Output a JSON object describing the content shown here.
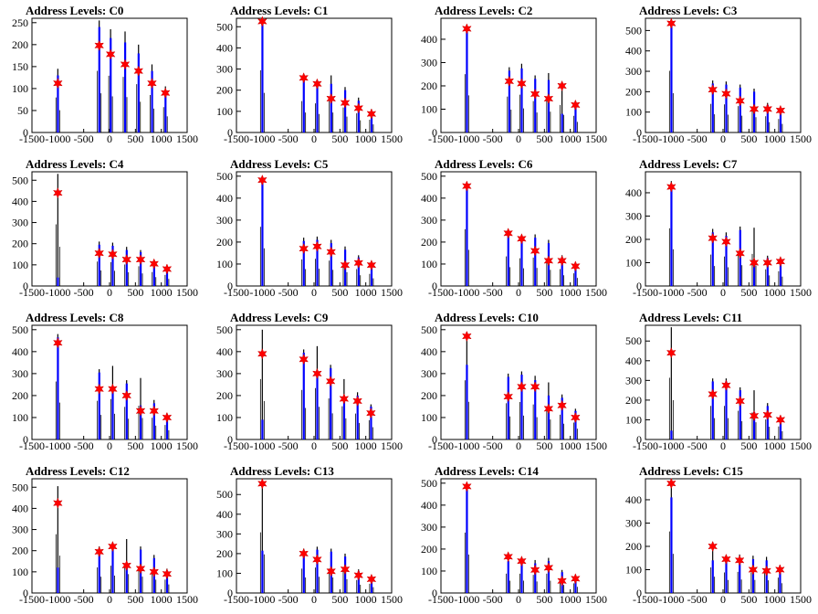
{
  "figure": {
    "background": "#ffffff",
    "colors": {
      "histogram": "#000000",
      "hist_fill": "#0000ff",
      "marker": "#ff0000",
      "axis": "#000000"
    }
  },
  "chart_data": [
    {
      "type": "bar",
      "title": "Address Levels: C0",
      "xlim": [
        -1500,
        1500
      ],
      "ylim": [
        0,
        260
      ],
      "xticks": [
        -1500,
        -1000,
        -500,
        0,
        500,
        1000,
        1500
      ],
      "yticks": [
        0,
        50,
        100,
        150,
        200,
        250
      ],
      "peaks": [
        {
          "x": -1000,
          "hist": 145,
          "fill": 130,
          "marker": 112
        },
        {
          "x": -200,
          "hist": 255,
          "fill": 240,
          "marker": 198
        },
        {
          "x": 20,
          "hist": 235,
          "fill": 215,
          "marker": 178
        },
        {
          "x": 300,
          "hist": 230,
          "fill": 205,
          "marker": 155
        },
        {
          "x": 560,
          "hist": 200,
          "fill": 180,
          "marker": 140
        },
        {
          "x": 820,
          "hist": 155,
          "fill": 140,
          "marker": 112
        },
        {
          "x": 1080,
          "hist": 105,
          "fill": 95,
          "marker": 90
        }
      ]
    },
    {
      "type": "bar",
      "title": "Address Levels: C1",
      "xlim": [
        -1500,
        1500
      ],
      "ylim": [
        0,
        540
      ],
      "xticks": [
        -1500,
        -1000,
        -500,
        0,
        500,
        1000,
        1500
      ],
      "yticks": [
        0,
        100,
        200,
        300,
        400,
        500
      ],
      "peaks": [
        {
          "x": -1000,
          "hist": 535,
          "fill": 525,
          "marker": 525
        },
        {
          "x": -200,
          "hist": 270,
          "fill": 255,
          "marker": 258
        },
        {
          "x": 60,
          "hist": 250,
          "fill": 235,
          "marker": 230
        },
        {
          "x": 330,
          "hist": 270,
          "fill": 230,
          "marker": 160
        },
        {
          "x": 600,
          "hist": 215,
          "fill": 200,
          "marker": 140
        },
        {
          "x": 860,
          "hist": 165,
          "fill": 150,
          "marker": 115
        },
        {
          "x": 1110,
          "hist": 110,
          "fill": 100,
          "marker": 88
        }
      ]
    },
    {
      "type": "bar",
      "title": "Address Levels: C2",
      "xlim": [
        -1500,
        1500
      ],
      "ylim": [
        0,
        490
      ],
      "xticks": [
        -1500,
        -1000,
        -500,
        0,
        500,
        1000,
        1500
      ],
      "yticks": [
        0,
        100,
        200,
        300,
        400
      ],
      "peaks": [
        {
          "x": -1000,
          "hist": 455,
          "fill": 445,
          "marker": 445
        },
        {
          "x": -180,
          "hist": 280,
          "fill": 265,
          "marker": 220
        },
        {
          "x": 60,
          "hist": 295,
          "fill": 275,
          "marker": 210
        },
        {
          "x": 320,
          "hist": 245,
          "fill": 230,
          "marker": 165
        },
        {
          "x": 580,
          "hist": 255,
          "fill": 225,
          "marker": 145
        },
        {
          "x": 840,
          "hist": 215,
          "fill": 80,
          "marker": 200
        },
        {
          "x": 1100,
          "hist": 130,
          "fill": 120,
          "marker": 118
        }
      ]
    },
    {
      "type": "bar",
      "title": "Address Levels: C3",
      "xlim": [
        -1500,
        1500
      ],
      "ylim": [
        0,
        560
      ],
      "xticks": [
        -1500,
        -1000,
        -500,
        0,
        500,
        1000,
        1500
      ],
      "yticks": [
        0,
        100,
        200,
        300,
        400,
        500
      ],
      "peaks": [
        {
          "x": -1000,
          "hist": 550,
          "fill": 535,
          "marker": 535
        },
        {
          "x": -200,
          "hist": 255,
          "fill": 240,
          "marker": 210
        },
        {
          "x": 60,
          "hist": 250,
          "fill": 235,
          "marker": 190
        },
        {
          "x": 330,
          "hist": 235,
          "fill": 220,
          "marker": 155
        },
        {
          "x": 600,
          "hist": 215,
          "fill": 200,
          "marker": 115
        },
        {
          "x": 860,
          "hist": 145,
          "fill": 135,
          "marker": 115
        },
        {
          "x": 1110,
          "hist": 120,
          "fill": 110,
          "marker": 108
        }
      ]
    },
    {
      "type": "bar",
      "title": "Address Levels: C4",
      "xlim": [
        -1500,
        1500
      ],
      "ylim": [
        0,
        540
      ],
      "xticks": [
        -1500,
        -1000,
        -500,
        0,
        500,
        1000,
        1500
      ],
      "yticks": [
        0,
        100,
        200,
        300,
        400,
        500
      ],
      "peaks": [
        {
          "x": -1000,
          "hist": 530,
          "fill": 40,
          "marker": 440
        },
        {
          "x": -200,
          "hist": 210,
          "fill": 195,
          "marker": 155
        },
        {
          "x": 60,
          "hist": 205,
          "fill": 190,
          "marker": 150
        },
        {
          "x": 330,
          "hist": 185,
          "fill": 170,
          "marker": 125
        },
        {
          "x": 600,
          "hist": 170,
          "fill": 160,
          "marker": 125
        },
        {
          "x": 860,
          "hist": 120,
          "fill": 110,
          "marker": 105
        },
        {
          "x": 1110,
          "hist": 95,
          "fill": 85,
          "marker": 80
        }
      ]
    },
    {
      "type": "bar",
      "title": "Address Levels: C5",
      "xlim": [
        -1500,
        1500
      ],
      "ylim": [
        0,
        520
      ],
      "xticks": [
        -1500,
        -1000,
        -500,
        0,
        500,
        1000,
        1500
      ],
      "yticks": [
        0,
        100,
        200,
        300,
        400,
        500
      ],
      "peaks": [
        {
          "x": -1000,
          "hist": 490,
          "fill": 480,
          "marker": 482
        },
        {
          "x": -200,
          "hist": 220,
          "fill": 205,
          "marker": 170
        },
        {
          "x": 60,
          "hist": 225,
          "fill": 210,
          "marker": 180
        },
        {
          "x": 330,
          "hist": 210,
          "fill": 195,
          "marker": 155
        },
        {
          "x": 600,
          "hist": 180,
          "fill": 165,
          "marker": 95
        },
        {
          "x": 860,
          "hist": 140,
          "fill": 130,
          "marker": 105
        },
        {
          "x": 1110,
          "hist": 100,
          "fill": 95,
          "marker": 95
        }
      ]
    },
    {
      "type": "bar",
      "title": "Address Levels: C6",
      "xlim": [
        -1500,
        1500
      ],
      "ylim": [
        0,
        520
      ],
      "xticks": [
        -1500,
        -1000,
        -500,
        0,
        500,
        1000,
        1500
      ],
      "yticks": [
        0,
        100,
        200,
        300,
        400,
        500
      ],
      "peaks": [
        {
          "x": -1000,
          "hist": 470,
          "fill": 455,
          "marker": 455
        },
        {
          "x": -200,
          "hist": 245,
          "fill": 230,
          "marker": 240
        },
        {
          "x": 60,
          "hist": 230,
          "fill": 215,
          "marker": 215
        },
        {
          "x": 320,
          "hist": 235,
          "fill": 220,
          "marker": 160
        },
        {
          "x": 580,
          "hist": 210,
          "fill": 195,
          "marker": 115
        },
        {
          "x": 840,
          "hist": 140,
          "fill": 130,
          "marker": 115
        },
        {
          "x": 1100,
          "hist": 105,
          "fill": 95,
          "marker": 90
        }
      ]
    },
    {
      "type": "bar",
      "title": "Address Levels: C7",
      "xlim": [
        -1500,
        1500
      ],
      "ylim": [
        0,
        490
      ],
      "xticks": [
        -1500,
        -1000,
        -500,
        0,
        500,
        1000,
        1500
      ],
      "yticks": [
        0,
        100,
        200,
        300,
        400
      ],
      "peaks": [
        {
          "x": -1000,
          "hist": 450,
          "fill": 435,
          "marker": 425
        },
        {
          "x": -200,
          "hist": 245,
          "fill": 230,
          "marker": 205
        },
        {
          "x": 60,
          "hist": 230,
          "fill": 215,
          "marker": 190
        },
        {
          "x": 330,
          "hist": 255,
          "fill": 240,
          "marker": 140
        },
        {
          "x": 600,
          "hist": 250,
          "fill": 100,
          "marker": 100
        },
        {
          "x": 860,
          "hist": 130,
          "fill": 120,
          "marker": 100
        },
        {
          "x": 1110,
          "hist": 115,
          "fill": 105,
          "marker": 105
        }
      ]
    },
    {
      "type": "bar",
      "title": "Address Levels: C8",
      "xlim": [
        -1500,
        1500
      ],
      "ylim": [
        0,
        520
      ],
      "xticks": [
        -1500,
        -1000,
        -500,
        0,
        500,
        1000,
        1500
      ],
      "yticks": [
        0,
        100,
        200,
        300,
        400,
        500
      ],
      "peaks": [
        {
          "x": -1000,
          "hist": 480,
          "fill": 465,
          "marker": 440
        },
        {
          "x": -200,
          "hist": 320,
          "fill": 305,
          "marker": 230
        },
        {
          "x": 60,
          "hist": 335,
          "fill": 240,
          "marker": 230
        },
        {
          "x": 330,
          "hist": 270,
          "fill": 255,
          "marker": 200
        },
        {
          "x": 600,
          "hist": 280,
          "fill": 155,
          "marker": 130
        },
        {
          "x": 860,
          "hist": 180,
          "fill": 165,
          "marker": 130
        },
        {
          "x": 1110,
          "hist": 120,
          "fill": 110,
          "marker": 100
        }
      ]
    },
    {
      "type": "bar",
      "title": "Address Levels: C9",
      "xlim": [
        -1500,
        1500
      ],
      "ylim": [
        0,
        520
      ],
      "xticks": [
        -1500,
        -1000,
        -500,
        0,
        500,
        1000,
        1500
      ],
      "yticks": [
        0,
        100,
        200,
        300,
        400,
        500
      ],
      "peaks": [
        {
          "x": -1000,
          "hist": 500,
          "fill": 90,
          "marker": 390
        },
        {
          "x": -200,
          "hist": 410,
          "fill": 395,
          "marker": 365
        },
        {
          "x": 60,
          "hist": 425,
          "fill": 300,
          "marker": 300
        },
        {
          "x": 320,
          "hist": 340,
          "fill": 325,
          "marker": 265
        },
        {
          "x": 580,
          "hist": 275,
          "fill": 200,
          "marker": 185
        },
        {
          "x": 840,
          "hist": 215,
          "fill": 200,
          "marker": 175
        },
        {
          "x": 1100,
          "hist": 160,
          "fill": 150,
          "marker": 120
        }
      ]
    },
    {
      "type": "bar",
      "title": "Address Levels: C10",
      "xlim": [
        -1500,
        1500
      ],
      "ylim": [
        0,
        520
      ],
      "xticks": [
        -1500,
        -1000,
        -500,
        0,
        500,
        1000,
        1500
      ],
      "yticks": [
        0,
        100,
        200,
        300,
        400,
        500
      ],
      "peaks": [
        {
          "x": -1000,
          "hist": 490,
          "fill": 340,
          "marker": 470
        },
        {
          "x": -200,
          "hist": 300,
          "fill": 285,
          "marker": 195
        },
        {
          "x": 60,
          "hist": 310,
          "fill": 295,
          "marker": 240
        },
        {
          "x": 320,
          "hist": 290,
          "fill": 270,
          "marker": 240
        },
        {
          "x": 580,
          "hist": 260,
          "fill": 200,
          "marker": 140
        },
        {
          "x": 840,
          "hist": 205,
          "fill": 190,
          "marker": 155
        },
        {
          "x": 1100,
          "hist": 140,
          "fill": 130,
          "marker": 100
        }
      ]
    },
    {
      "type": "bar",
      "title": "Address Levels: C11",
      "xlim": [
        -1500,
        1500
      ],
      "ylim": [
        0,
        580
      ],
      "xticks": [
        -1500,
        -1000,
        -500,
        0,
        500,
        1000,
        1500
      ],
      "yticks": [
        0,
        100,
        200,
        300,
        400,
        500
      ],
      "peaks": [
        {
          "x": -1000,
          "hist": 570,
          "fill": 45,
          "marker": 440
        },
        {
          "x": -200,
          "hist": 310,
          "fill": 295,
          "marker": 230
        },
        {
          "x": 60,
          "hist": 310,
          "fill": 295,
          "marker": 275
        },
        {
          "x": 330,
          "hist": 265,
          "fill": 250,
          "marker": 195
        },
        {
          "x": 600,
          "hist": 250,
          "fill": 140,
          "marker": 120
        },
        {
          "x": 860,
          "hist": 185,
          "fill": 170,
          "marker": 125
        },
        {
          "x": 1110,
          "hist": 120,
          "fill": 110,
          "marker": 100
        }
      ]
    },
    {
      "type": "bar",
      "title": "Address Levels: C12",
      "xlim": [
        -1500,
        1500
      ],
      "ylim": [
        0,
        540
      ],
      "xticks": [
        -1500,
        -1000,
        -500,
        0,
        500,
        1000,
        1500
      ],
      "yticks": [
        0,
        100,
        200,
        300,
        400,
        500
      ],
      "peaks": [
        {
          "x": -1000,
          "hist": 505,
          "fill": 120,
          "marker": 425
        },
        {
          "x": -200,
          "hist": 220,
          "fill": 205,
          "marker": 195
        },
        {
          "x": 60,
          "hist": 235,
          "fill": 220,
          "marker": 220
        },
        {
          "x": 330,
          "hist": 255,
          "fill": 120,
          "marker": 130
        },
        {
          "x": 600,
          "hist": 220,
          "fill": 205,
          "marker": 115
        },
        {
          "x": 860,
          "hist": 180,
          "fill": 165,
          "marker": 100
        },
        {
          "x": 1110,
          "hist": 115,
          "fill": 105,
          "marker": 90
        }
      ]
    },
    {
      "type": "bar",
      "title": "Address Levels: C13",
      "xlim": [
        -1500,
        1500
      ],
      "ylim": [
        0,
        580
      ],
      "xticks": [
        -1500,
        -1000,
        -500,
        0,
        500,
        1000,
        1500
      ],
      "yticks": [
        0,
        100,
        200,
        300,
        400,
        500
      ],
      "peaks": [
        {
          "x": -1000,
          "hist": 560,
          "fill": 215,
          "marker": 555
        },
        {
          "x": -200,
          "hist": 225,
          "fill": 210,
          "marker": 200
        },
        {
          "x": 60,
          "hist": 235,
          "fill": 220,
          "marker": 170
        },
        {
          "x": 330,
          "hist": 225,
          "fill": 210,
          "marker": 110
        },
        {
          "x": 600,
          "hist": 200,
          "fill": 185,
          "marker": 120
        },
        {
          "x": 860,
          "hist": 120,
          "fill": 110,
          "marker": 90
        },
        {
          "x": 1110,
          "hist": 85,
          "fill": 75,
          "marker": 70
        }
      ]
    },
    {
      "type": "bar",
      "title": "Address Levels: C14",
      "xlim": [
        -1500,
        1500
      ],
      "ylim": [
        0,
        520
      ],
      "xticks": [
        -1500,
        -1000,
        -500,
        0,
        500,
        1000,
        1500
      ],
      "yticks": [
        0,
        100,
        200,
        300,
        400,
        500
      ],
      "peaks": [
        {
          "x": -1000,
          "hist": 500,
          "fill": 490,
          "marker": 485
        },
        {
          "x": -200,
          "hist": 160,
          "fill": 145,
          "marker": 165
        },
        {
          "x": 60,
          "hist": 160,
          "fill": 145,
          "marker": 145
        },
        {
          "x": 320,
          "hist": 150,
          "fill": 135,
          "marker": 105
        },
        {
          "x": 580,
          "hist": 160,
          "fill": 145,
          "marker": 115
        },
        {
          "x": 840,
          "hist": 105,
          "fill": 95,
          "marker": 55
        },
        {
          "x": 1100,
          "hist": 80,
          "fill": 70,
          "marker": 65
        }
      ]
    },
    {
      "type": "bar",
      "title": "Address Levels: C15",
      "xlim": [
        -1500,
        1500
      ],
      "ylim": [
        0,
        490
      ],
      "xticks": [
        -1500,
        -1000,
        -500,
        0,
        500,
        1000,
        1500
      ],
      "yticks": [
        0,
        100,
        200,
        300,
        400
      ],
      "peaks": [
        {
          "x": -1000,
          "hist": 480,
          "fill": 410,
          "marker": 470
        },
        {
          "x": -200,
          "hist": 200,
          "fill": 140,
          "marker": 200
        },
        {
          "x": 60,
          "hist": 160,
          "fill": 150,
          "marker": 145
        },
        {
          "x": 320,
          "hist": 165,
          "fill": 150,
          "marker": 140
        },
        {
          "x": 580,
          "hist": 160,
          "fill": 145,
          "marker": 100
        },
        {
          "x": 840,
          "hist": 155,
          "fill": 140,
          "marker": 95
        },
        {
          "x": 1100,
          "hist": 120,
          "fill": 110,
          "marker": 100
        }
      ]
    }
  ]
}
